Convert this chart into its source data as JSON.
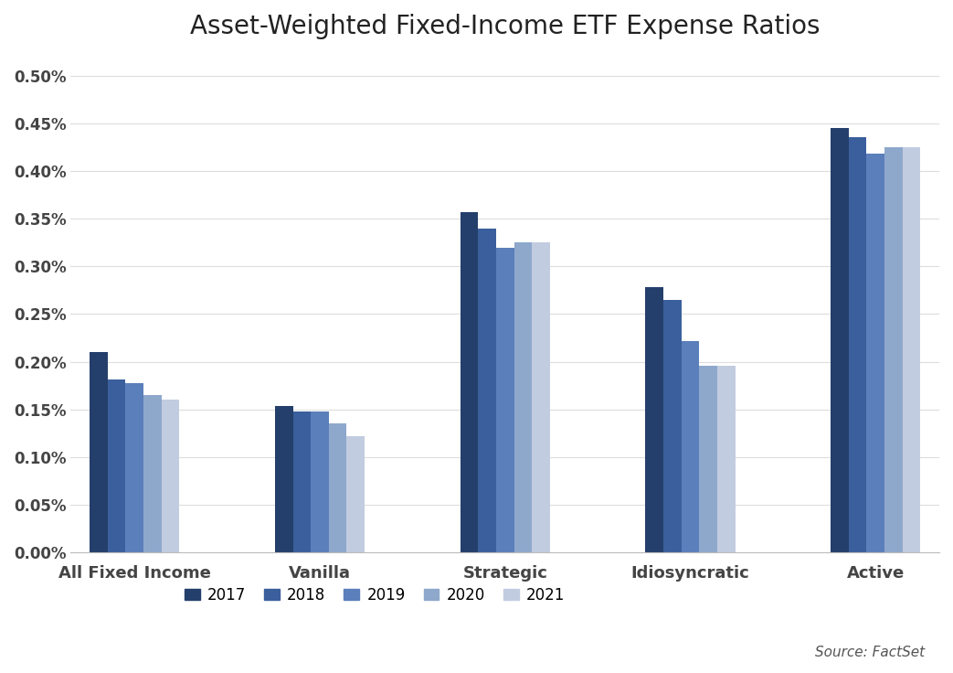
{
  "title": "Asset-Weighted Fixed-Income ETF Expense Ratios",
  "categories": [
    "All Fixed Income",
    "Vanilla",
    "Strategic",
    "Idiosyncratic",
    "Active"
  ],
  "years": [
    "2017",
    "2018",
    "2019",
    "2020",
    "2021"
  ],
  "values": {
    "All Fixed Income": [
      0.0021,
      0.00181,
      0.00178,
      0.00165,
      0.0016
    ],
    "Vanilla": [
      0.00154,
      0.00148,
      0.00148,
      0.00135,
      0.00122
    ],
    "Strategic": [
      0.00357,
      0.0034,
      0.0032,
      0.00325,
      0.00325
    ],
    "Idiosyncratic": [
      0.00278,
      0.00265,
      0.00222,
      0.00196,
      0.00196
    ],
    "Active": [
      0.00445,
      0.00436,
      0.00418,
      0.00425,
      0.00425
    ]
  },
  "bar_colors": [
    "#243F6B",
    "#3A5F9C",
    "#5B7FBB",
    "#8EA8CC",
    "#C2CCE0"
  ],
  "ylim": [
    0,
    0.0052
  ],
  "yticks": [
    0.0,
    0.0005,
    0.001,
    0.0015,
    0.002,
    0.0025,
    0.003,
    0.0035,
    0.004,
    0.0045,
    0.005
  ],
  "ytick_labels": [
    "0.00%",
    "0.05%",
    "0.10%",
    "0.15%",
    "0.20%",
    "0.25%",
    "0.30%",
    "0.35%",
    "0.40%",
    "0.45%",
    "0.50%"
  ],
  "source_text": "Source: FactSet",
  "figsize": [
    10.43,
    7.36
  ],
  "dpi": 100
}
